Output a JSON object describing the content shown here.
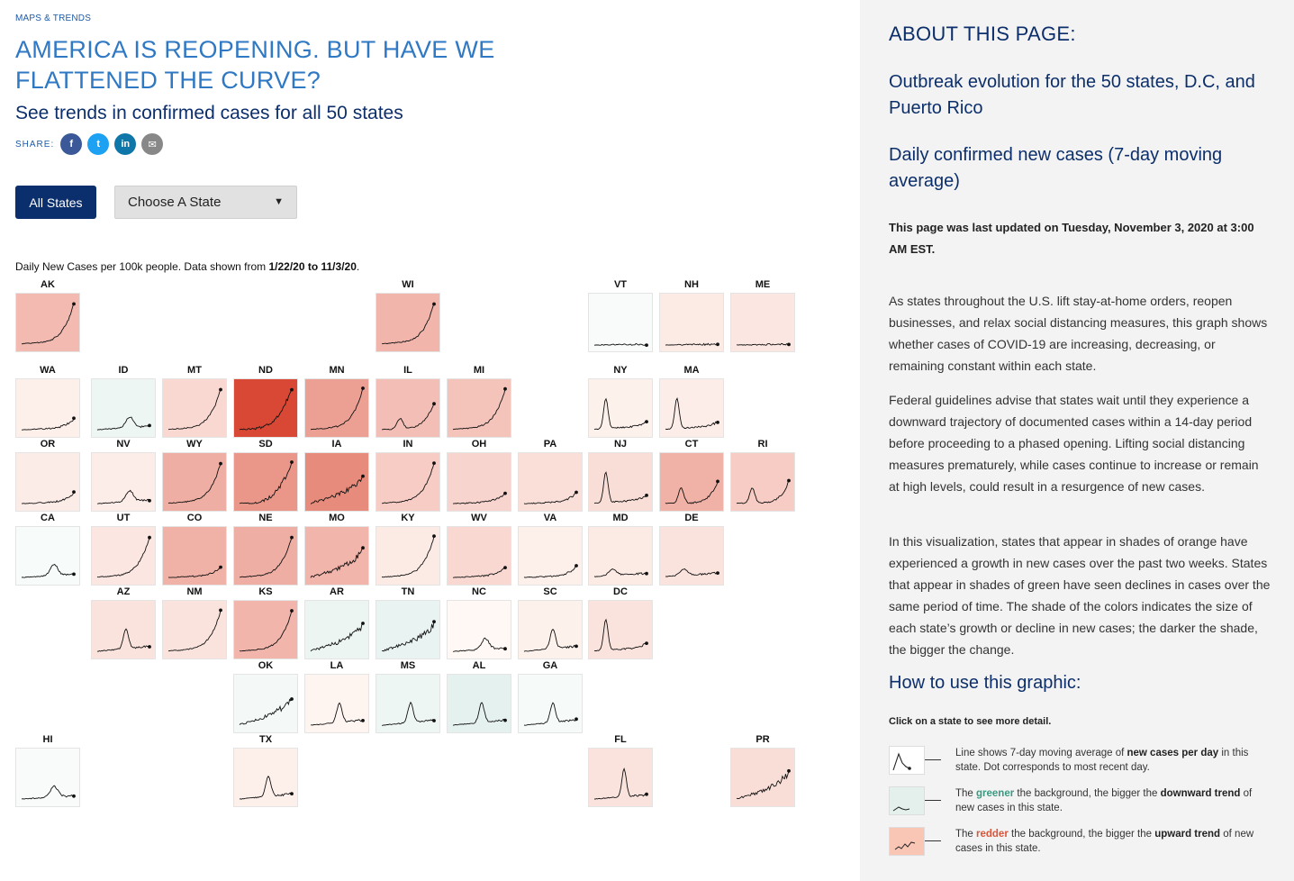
{
  "header": {
    "kicker": "MAPS & TRENDS",
    "title": "AMERICA IS REOPENING. BUT HAVE WE FLATTENED THE CURVE?",
    "subtitle": "See trends in confirmed cases for all 50 states",
    "share_label": "SHARE:",
    "share_buttons": [
      {
        "name": "facebook-icon",
        "glyph": "f",
        "color": "#3b5998"
      },
      {
        "name": "twitter-icon",
        "glyph": "t",
        "color": "#1da1f2"
      },
      {
        "name": "linkedin-icon",
        "glyph": "in",
        "color": "#0e76a8"
      },
      {
        "name": "email-icon",
        "glyph": "✉",
        "color": "#888888"
      }
    ]
  },
  "controls": {
    "all_states_label": "All States",
    "choose_state_label": "Choose A State",
    "choose_state_arrow": "▼"
  },
  "grid_note": {
    "prefix": "Daily New Cases per 100k people. Data shown from ",
    "range": "1/22/20 to 11/3/20",
    "suffix": "."
  },
  "states": [
    {
      "code": "AK",
      "row": 0,
      "col": 0,
      "trend": 0.35,
      "shape": "late"
    },
    {
      "code": "WI",
      "row": 0,
      "col": 5,
      "trend": 0.38,
      "shape": "late"
    },
    {
      "code": "VT",
      "row": 0,
      "col": 8,
      "trend": -0.02,
      "shape": "flat"
    },
    {
      "code": "NH",
      "row": 0,
      "col": 9,
      "trend": 0.08,
      "shape": "flat"
    },
    {
      "code": "ME",
      "row": 0,
      "col": 10,
      "trend": 0.1,
      "shape": "flat"
    },
    {
      "code": "WA",
      "row": 1,
      "col": 0,
      "trend": 0.05,
      "shape": "flatlate"
    },
    {
      "code": "ID",
      "row": 1,
      "col": 1,
      "trend": -0.12,
      "shape": "mid"
    },
    {
      "code": "MT",
      "row": 1,
      "col": 2,
      "trend": 0.18,
      "shape": "late"
    },
    {
      "code": "ND",
      "row": 1,
      "col": 3,
      "trend": 1.0,
      "shape": "steep"
    },
    {
      "code": "MN",
      "row": 1,
      "col": 4,
      "trend": 0.5,
      "shape": "late"
    },
    {
      "code": "IL",
      "row": 1,
      "col": 5,
      "trend": 0.33,
      "shape": "dbl"
    },
    {
      "code": "MI",
      "row": 1,
      "col": 6,
      "trend": 0.3,
      "shape": "late"
    },
    {
      "code": "NY",
      "row": 1,
      "col": 8,
      "trend": 0.04,
      "shape": "early"
    },
    {
      "code": "MA",
      "row": 1,
      "col": 9,
      "trend": 0.06,
      "shape": "early"
    },
    {
      "code": "OR",
      "row": 2,
      "col": 0,
      "trend": 0.07,
      "shape": "flatlate"
    },
    {
      "code": "NV",
      "row": 2,
      "col": 1,
      "trend": 0.06,
      "shape": "mid"
    },
    {
      "code": "WY",
      "row": 2,
      "col": 2,
      "trend": 0.42,
      "shape": "late"
    },
    {
      "code": "SD",
      "row": 2,
      "col": 3,
      "trend": 0.55,
      "shape": "steep"
    },
    {
      "code": "IA",
      "row": 2,
      "col": 4,
      "trend": 0.62,
      "shape": "noisy"
    },
    {
      "code": "IN",
      "row": 2,
      "col": 5,
      "trend": 0.25,
      "shape": "late"
    },
    {
      "code": "OH",
      "row": 2,
      "col": 6,
      "trend": 0.2,
      "shape": "flatlate"
    },
    {
      "code": "PA",
      "row": 2,
      "col": 7,
      "trend": 0.14,
      "shape": "flatlate"
    },
    {
      "code": "NJ",
      "row": 2,
      "col": 8,
      "trend": 0.15,
      "shape": "early"
    },
    {
      "code": "CT",
      "row": 2,
      "col": 9,
      "trend": 0.4,
      "shape": "earlylate"
    },
    {
      "code": "RI",
      "row": 2,
      "col": 10,
      "trend": 0.25,
      "shape": "earlylate"
    },
    {
      "code": "CA",
      "row": 3,
      "col": 0,
      "trend": -0.03,
      "shape": "mid"
    },
    {
      "code": "UT",
      "row": 3,
      "col": 1,
      "trend": 0.1,
      "shape": "late"
    },
    {
      "code": "CO",
      "row": 3,
      "col": 2,
      "trend": 0.4,
      "shape": "flatlate"
    },
    {
      "code": "NE",
      "row": 3,
      "col": 3,
      "trend": 0.42,
      "shape": "late"
    },
    {
      "code": "MO",
      "row": 3,
      "col": 4,
      "trend": 0.38,
      "shape": "noisy"
    },
    {
      "code": "KY",
      "row": 3,
      "col": 5,
      "trend": 0.08,
      "shape": "late"
    },
    {
      "code": "WV",
      "row": 3,
      "col": 6,
      "trend": 0.18,
      "shape": "flatlate"
    },
    {
      "code": "VA",
      "row": 3,
      "col": 7,
      "trend": 0.05,
      "shape": "flatlate"
    },
    {
      "code": "MD",
      "row": 3,
      "col": 8,
      "trend": 0.08,
      "shape": "wave"
    },
    {
      "code": "DE",
      "row": 3,
      "col": 9,
      "trend": 0.12,
      "shape": "wave"
    },
    {
      "code": "AZ",
      "row": 4,
      "col": 1,
      "trend": 0.12,
      "shape": "summer"
    },
    {
      "code": "NM",
      "row": 4,
      "col": 2,
      "trend": 0.12,
      "shape": "late"
    },
    {
      "code": "KS",
      "row": 4,
      "col": 3,
      "trend": 0.38,
      "shape": "late"
    },
    {
      "code": "AR",
      "row": 4,
      "col": 4,
      "trend": -0.15,
      "shape": "noisy"
    },
    {
      "code": "TN",
      "row": 4,
      "col": 5,
      "trend": -0.18,
      "shape": "noisy"
    },
    {
      "code": "NC",
      "row": 4,
      "col": 6,
      "trend": 0.0,
      "shape": "mid"
    },
    {
      "code": "SC",
      "row": 4,
      "col": 7,
      "trend": 0.04,
      "shape": "summer"
    },
    {
      "code": "DC",
      "row": 4,
      "col": 8,
      "trend": 0.12,
      "shape": "early"
    },
    {
      "code": "OK",
      "row": 5,
      "col": 3,
      "trend": -0.06,
      "shape": "noisy"
    },
    {
      "code": "LA",
      "row": 5,
      "col": 4,
      "trend": 0.02,
      "shape": "summer"
    },
    {
      "code": "MS",
      "row": 5,
      "col": 5,
      "trend": -0.12,
      "shape": "summer"
    },
    {
      "code": "AL",
      "row": 5,
      "col": 6,
      "trend": -0.22,
      "shape": "summer"
    },
    {
      "code": "GA",
      "row": 5,
      "col": 7,
      "trend": -0.04,
      "shape": "summer"
    },
    {
      "code": "HI",
      "row": 6,
      "col": 0,
      "trend": -0.02,
      "shape": "mid"
    },
    {
      "code": "TX",
      "row": 6,
      "col": 3,
      "trend": 0.05,
      "shape": "summer"
    },
    {
      "code": "FL",
      "row": 6,
      "col": 8,
      "trend": 0.12,
      "shape": "summerbig"
    },
    {
      "code": "PR",
      "row": 6,
      "col": 10,
      "trend": 0.15,
      "shape": "noisy"
    }
  ],
  "about": {
    "heading": "ABOUT THIS PAGE:",
    "sub1": "Outbreak evolution for the 50 states, D.C, and Puerto Rico",
    "sub2": "Daily confirmed new cases (7-day moving average)",
    "updated": "This page was last updated on Tuesday, November 3, 2020 at 3:00 AM EST.",
    "para1": "As states throughout the U.S. lift stay-at-home orders, reopen businesses, and relax social distancing measures, this graph shows whether cases of COVID-19 are increasing, decreasing, or remaining constant within each state.",
    "para2": "Federal guidelines advise that states wait until they experience a downward trajectory of documented cases within a 14-day period before proceeding to a phased opening. Lifting social distancing measures prematurely, while cases continue to increase or remain at high levels, could result in a resurgence of new cases.",
    "para3": "In this visualization, states that appear in shades of orange have experienced a growth in new cases over the past two weeks. States that appear in shades of green have seen declines in cases over the same period of time. The shade of the colors indicates the size of each state’s growth or decline in new cases; the darker the shade, the bigger the change.",
    "howto_heading": "How to use this graphic:",
    "click_note": "Click on a state to see more detail.",
    "legend": {
      "line_pre": "Line shows 7-day moving average of ",
      "line_bold": "new cases per day",
      "line_post": " in this state. Dot corresponds to most recent day.",
      "green_pre": "The ",
      "green_word": "greener",
      "green_mid": " the background, the bigger the ",
      "green_bold": "downward trend",
      "green_post": " of new cases in this state.",
      "red_pre": "The ",
      "red_word": "redder",
      "red_mid": " the background, the bigger the ",
      "red_bold": "upward trend",
      "red_post": " of new cases in this state."
    }
  },
  "colors": {
    "navy": "#0a2f6c",
    "title_blue": "#2f78c4",
    "panel_bg": "#f3f3f3"
  }
}
